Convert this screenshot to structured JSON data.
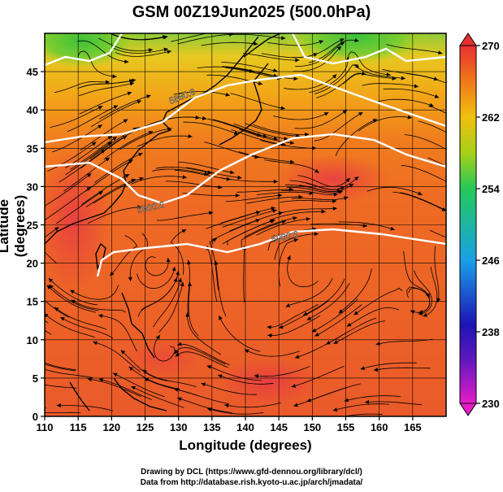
{
  "title": "GSM 00Z19Jun2025 (500.0hPa)",
  "axes": {
    "xlabel": "Longitude (degrees)",
    "ylabel": "Latitude  (degrees)",
    "xticks": [
      "110",
      "115",
      "120",
      "125",
      "130",
      "135",
      "140",
      "145",
      "150",
      "155",
      "160",
      "165"
    ],
    "yticks": [
      "0",
      "5",
      "10",
      "15",
      "20",
      "25",
      "30",
      "35",
      "40",
      "45"
    ],
    "xrange": [
      110,
      170
    ],
    "yrange": [
      0,
      50
    ]
  },
  "colorbar": {
    "labels": [
      "230",
      "238",
      "246",
      "254",
      "262",
      "270"
    ],
    "range": [
      230,
      270
    ],
    "colors": [
      "#e81cc8",
      "#1c14b4",
      "#1aa0e8",
      "#25c85a",
      "#f0d010",
      "#f07818",
      "#e83030"
    ]
  },
  "contours": [
    {
      "label": "5900.0"
    },
    {
      "label": "5900.0"
    },
    {
      "label": "5880.0"
    }
  ],
  "footer": {
    "line1": "Drawing by DCL (https://www.gfd-dennou.org/library/dcl/)",
    "line2": "Data from http://database.rish.kyoto-u.ac.jp/arch/jmadata/"
  }
}
